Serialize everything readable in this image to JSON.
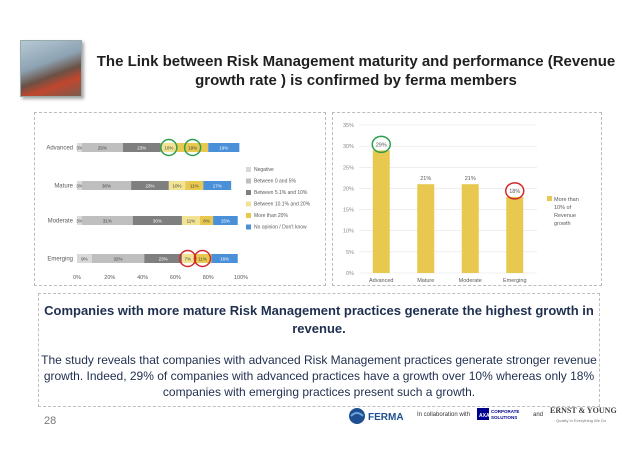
{
  "title": "The Link between Risk Management maturity and performance (Revenue growth rate ) is confirmed by ferma members",
  "chart_data": [
    {
      "type": "bar",
      "orientation": "horizontal",
      "stacked": true,
      "categories": [
        "Advanced",
        "Mature",
        "Moderate",
        "Emerging"
      ],
      "series": [
        {
          "name": "Negative",
          "color": "#d9d9d9",
          "values": [
            3,
            3,
            3,
            9
          ]
        },
        {
          "name": "Between 0 and 5%",
          "color": "#bfbfbf",
          "values": [
            25,
            30,
            31,
            32
          ]
        },
        {
          "name": "Between 5.1% and 10%",
          "color": "#7f7f7f",
          "values": [
            23,
            23,
            30,
            23
          ]
        },
        {
          "name": "Between 10.1% and 20%",
          "color": "#f2e394",
          "values": [
            10,
            10,
            11,
            7
          ]
        },
        {
          "name": "More than 20%",
          "color": "#e8c84e",
          "values": [
            19,
            11,
            8,
            11
          ]
        },
        {
          "name": "No opinion / Don't know",
          "color": "#4a90d9",
          "values": [
            19,
            17,
            15,
            16
          ]
        }
      ],
      "value_labels": [
        [
          "3%",
          "25%",
          "23%",
          "10%",
          "19%",
          "19%"
        ],
        [
          "3%",
          "30%",
          "23%",
          "10%",
          "11%",
          "17%"
        ],
        [
          "3%",
          "31%",
          "30%",
          "11%",
          "8%",
          "15%"
        ],
        [
          "9%",
          "32%",
          "23%",
          "7%",
          "11%",
          "16%"
        ]
      ],
      "x_ticks": [
        "0%",
        "20%",
        "40%",
        "60%",
        "80%",
        "100%"
      ],
      "xlim": [
        0,
        100
      ],
      "legend": "right",
      "highlight_circles": [
        {
          "category": "Advanced",
          "series": "Between 10.1% and 20%",
          "color": "#2e9e4e"
        },
        {
          "category": "Advanced",
          "series": "More than 20%",
          "color": "#2e9e4e"
        },
        {
          "category": "Emerging",
          "series": "Between 10.1% and 20%",
          "color": "#d12a2a"
        },
        {
          "category": "Emerging",
          "series": "More than 20%",
          "color": "#d12a2a"
        }
      ]
    },
    {
      "type": "bar",
      "categories": [
        "Advanced",
        "Mature",
        "Moderate",
        "Emerging"
      ],
      "series": [
        {
          "name": "More than 10% of Revenue growth",
          "color": "#e8c84e",
          "values": [
            29,
            21,
            21,
            18
          ]
        }
      ],
      "value_labels": [
        "29%",
        "21%",
        "21%",
        "18%"
      ],
      "y_ticks": [
        "0%",
        "5%",
        "10%",
        "15%",
        "20%",
        "25%",
        "30%",
        "35%"
      ],
      "ylim": [
        0,
        35
      ],
      "grid": true,
      "legend": "right",
      "highlight_circles": [
        {
          "category": "Advanced",
          "color": "#2e9e4e"
        },
        {
          "category": "Emerging",
          "color": "#d12a2a"
        }
      ]
    }
  ],
  "legend_right_label": [
    "More than",
    "10% of",
    "Revenue",
    "growth"
  ],
  "box": {
    "heading": "Companies with more mature Risk Management practices generate the highest growth in revenue.",
    "body": "The study reveals that companies with advanced Risk Management practices generate stronger revenue growth. Indeed, 29% of companies with advanced practices have a growth over 10% whereas only 18% companies with emerging practices present such a growth."
  },
  "footer": {
    "page_number": "28",
    "ferma": "FERMA",
    "collaboration": "In collaboration with",
    "axa_line1": "CORPORATE",
    "axa_line2": "SOLUTIONS",
    "and": "and",
    "ey": "ERNST & YOUNG",
    "ey_tagline": "Quality In Everything We Do"
  }
}
